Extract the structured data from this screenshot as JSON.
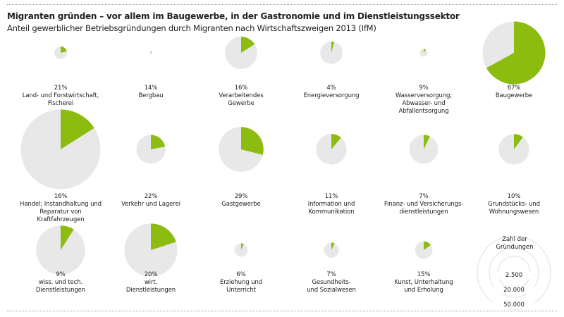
{
  "header": {
    "title": "Migranten gründen –  vor allem im Baugewerbe, in der Gastronomie und im Dienstleistungssektor",
    "subtitle": "Anteil gewerblicher Betriebsgründungen durch Migranten nach Wirtschaftszweigen 2013 (IfM)"
  },
  "colors": {
    "migrant_share": "#8cbc0f",
    "total": "#e8e8e8",
    "legend_ring": "#e0e0e0"
  },
  "chart_data": {
    "type": "pie",
    "description_units": "Anteil in %; Kreisgröße = Zahl der Gründungen",
    "items": [
      {
        "pct_label": "21%",
        "share": 21,
        "name_lines": [
          "Land- und Forstwirtschaft,",
          "Fischerei"
        ],
        "founding_count": 2400
      },
      {
        "pct_label": "14%",
        "share": 14,
        "name_lines": [
          "Bergbau"
        ],
        "founding_count": 150
      },
      {
        "pct_label": "16%",
        "share": 16,
        "name_lines": [
          "Verarbeitendes",
          "Gewerbe"
        ],
        "founding_count": 15500
      },
      {
        "pct_label": "4%",
        "share": 4,
        "name_lines": [
          "Energieversorgung"
        ],
        "founding_count": 7500
      },
      {
        "pct_label": "9%",
        "share": 9,
        "name_lines": [
          "Wasserversorgung;",
          "Abwasser- und",
          "Abfallentsorgung"
        ],
        "founding_count": 900
      },
      {
        "pct_label": "67%",
        "share": 67,
        "name_lines": [
          "Baugewerbe"
        ],
        "founding_count": 59000
      },
      {
        "pct_label": "16%",
        "share": 16,
        "name_lines": [
          "Handel; Instandhaltung und",
          "Reparatur von Kraftfahrzeugen"
        ],
        "founding_count": 95000
      },
      {
        "pct_label": "22%",
        "share": 22,
        "name_lines": [
          "Verkehr und Lagerei"
        ],
        "founding_count": 12500
      },
      {
        "pct_label": "29%",
        "share": 29,
        "name_lines": [
          "Gastgewerbe"
        ],
        "founding_count": 30000
      },
      {
        "pct_label": "11%",
        "share": 11,
        "name_lines": [
          "Information und",
          "Kommunikation"
        ],
        "founding_count": 14000
      },
      {
        "pct_label": "7%",
        "share": 7,
        "name_lines": [
          "Finanz- und Versicherungs-",
          "dienstleistungen"
        ],
        "founding_count": 12500
      },
      {
        "pct_label": "10%",
        "share": 10,
        "name_lines": [
          "Grundstücks- und",
          "Wohnungswesen"
        ],
        "founding_count": 14000
      },
      {
        "pct_label": "9%",
        "share": 9,
        "name_lines": [
          "wiss. und tech.",
          "Dienstleistungen"
        ],
        "founding_count": 36000
      },
      {
        "pct_label": "20%",
        "share": 20,
        "name_lines": [
          "wirt.",
          "Dienstleistungen"
        ],
        "founding_count": 42000
      },
      {
        "pct_label": "6%",
        "share": 6,
        "name_lines": [
          "Erziehung und",
          "Unterricht"
        ],
        "founding_count": 2700
      },
      {
        "pct_label": "7%",
        "share": 7,
        "name_lines": [
          "Gesundheits-",
          "und Sozialwesen"
        ],
        "founding_count": 3400
      },
      {
        "pct_label": "15%",
        "share": 15,
        "name_lines": [
          "Kunst, Unterhaltung",
          "und Erholung"
        ],
        "founding_count": 4600
      }
    ],
    "legend": {
      "title_lines": [
        "Zahl der",
        "Gründungen"
      ],
      "entries": [
        {
          "label": "2.500",
          "value": 2500
        },
        {
          "label": "20.000",
          "value": 20000
        },
        {
          "label": "50.000",
          "value": 50000
        }
      ]
    }
  }
}
